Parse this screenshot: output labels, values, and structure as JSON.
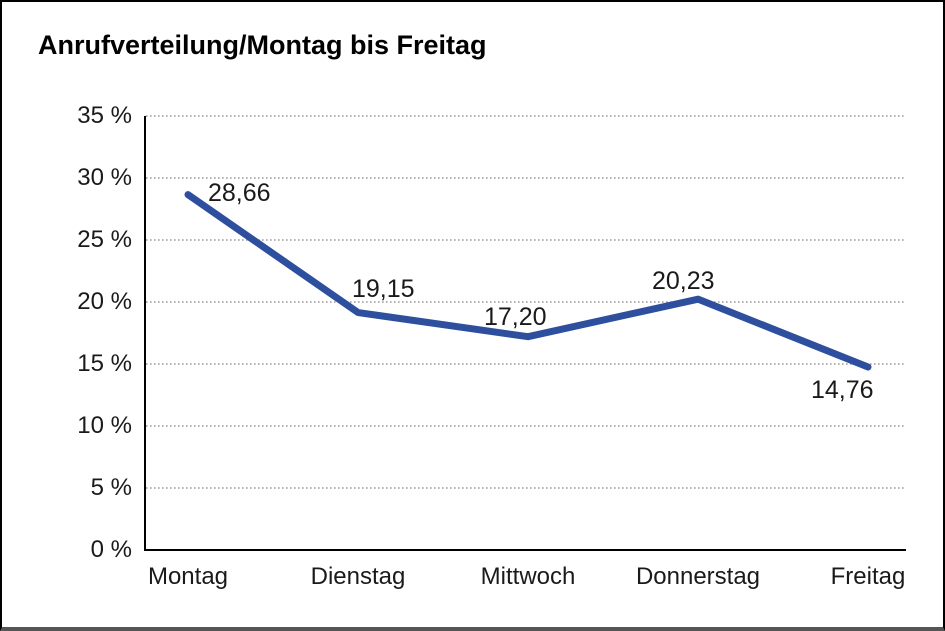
{
  "title": "Anrufverteilung/Montag bis Freitag",
  "chart_data": {
    "type": "line",
    "title": "Anrufverteilung/Montag bis Freitag",
    "categories": [
      "Montag",
      "Dienstag",
      "Mittwoch",
      "Donnerstag",
      "Freitag"
    ],
    "values": [
      28.66,
      19.15,
      17.2,
      20.23,
      14.76
    ],
    "point_labels": [
      "28,66",
      "19,15",
      "17,20",
      "20,23",
      "14,76"
    ],
    "xlabel": "",
    "ylabel": "",
    "y_ticks": [
      {
        "value": 0,
        "label": "0 %"
      },
      {
        "value": 5,
        "label": "5 %"
      },
      {
        "value": 10,
        "label": "10 %"
      },
      {
        "value": 15,
        "label": "15 %"
      },
      {
        "value": 20,
        "label": "20 %"
      },
      {
        "value": 25,
        "label": "25 %"
      },
      {
        "value": 30,
        "label": "30 %"
      },
      {
        "value": 35,
        "label": "35 %"
      }
    ],
    "ylim": [
      0,
      35
    ],
    "grid": "horizontal-dotted",
    "legend": "none",
    "colors": {
      "line": "#2e4e9e",
      "grid": "#9c9c9c",
      "axis": "#000000",
      "text": "#1a1a1a",
      "background": "#ffffff",
      "frame_border": "#000000"
    }
  }
}
